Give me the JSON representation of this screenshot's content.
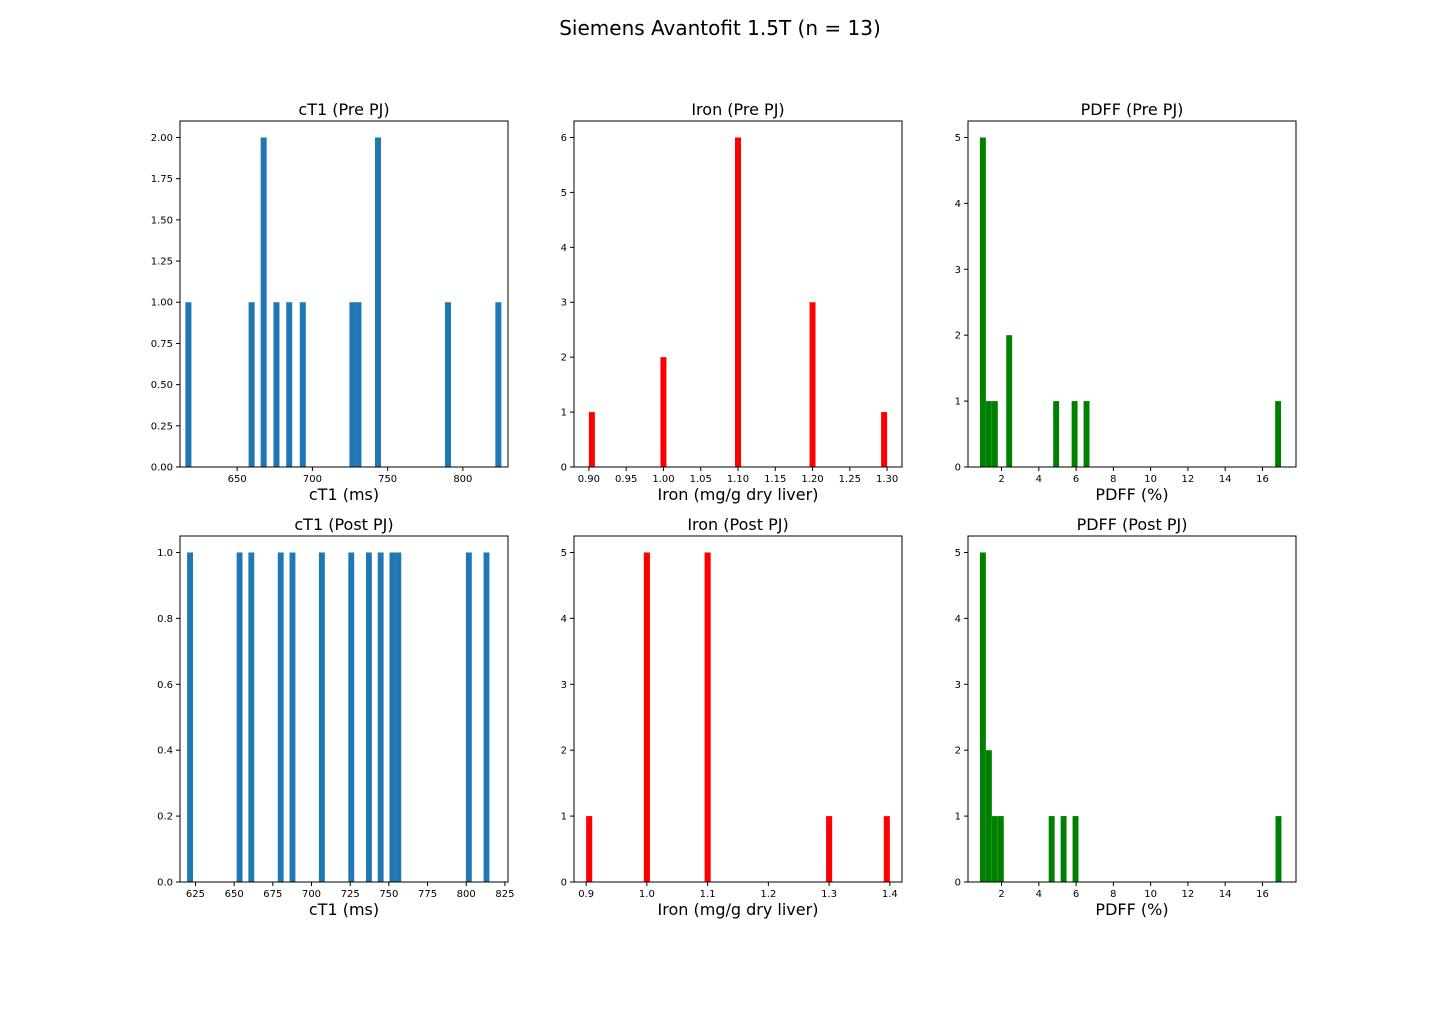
{
  "figure": {
    "title": "Siemens Avantofit 1.5T (n = 13)"
  },
  "chart_data": [
    {
      "type": "bar",
      "title": "cT1 (Pre PJ)",
      "xlabel": "cT1 (ms)",
      "ylabel": "",
      "xlim": [
        612,
        830
      ],
      "ylim": [
        0,
        2.1
      ],
      "bar_width": 4.0,
      "color": "#1f77b4",
      "xticks": [
        650,
        700,
        750,
        800
      ],
      "xtick_labels": [
        "650",
        "700",
        "750",
        "800"
      ],
      "yticks": [
        0,
        0.25,
        0.5,
        0.75,
        1,
        1.25,
        1.5,
        1.75,
        2
      ],
      "ytick_labels": [
        "0.00",
        "0.25",
        "0.50",
        "0.75",
        "1.00",
        "1.25",
        "1.50",
        "1.75",
        "2.00"
      ],
      "bars": [
        {
          "x": 617.6,
          "count": 1
        },
        {
          "x": 659.6,
          "count": 1
        },
        {
          "x": 667.6,
          "count": 2
        },
        {
          "x": 676.1,
          "count": 1
        },
        {
          "x": 684.6,
          "count": 1
        },
        {
          "x": 693.6,
          "count": 1
        },
        {
          "x": 726.6,
          "count": 1
        },
        {
          "x": 730.6,
          "count": 1
        },
        {
          "x": 743.6,
          "count": 2
        },
        {
          "x": 790.1,
          "count": 1
        },
        {
          "x": 823.6,
          "count": 1
        }
      ]
    },
    {
      "type": "bar",
      "title": "Iron (Pre PJ)",
      "xlabel": "Iron (mg/g dry liver)",
      "ylabel": "",
      "xlim": [
        0.88,
        1.32
      ],
      "ylim": [
        0,
        6.3
      ],
      "bar_width": 0.008,
      "color": "#ff0000",
      "xticks": [
        0.9,
        0.95,
        1.0,
        1.05,
        1.1,
        1.15,
        1.2,
        1.25,
        1.3
      ],
      "xtick_labels": [
        "0.90",
        "0.95",
        "1.00",
        "1.05",
        "1.10",
        "1.15",
        "1.20",
        "1.25",
        "1.30"
      ],
      "yticks": [
        0,
        1,
        2,
        3,
        4,
        5,
        6
      ],
      "ytick_labels": [
        "0",
        "1",
        "2",
        "3",
        "4",
        "5",
        "6"
      ],
      "bars": [
        {
          "x": 0.904,
          "count": 1
        },
        {
          "x": 1.0,
          "count": 2
        },
        {
          "x": 1.1,
          "count": 6
        },
        {
          "x": 1.2,
          "count": 3
        },
        {
          "x": 1.296,
          "count": 1
        }
      ]
    },
    {
      "type": "bar",
      "title": "PDFF (Pre PJ)",
      "xlabel": "PDFF (%)",
      "ylabel": "",
      "xlim": [
        0.2,
        17.8
      ],
      "ylim": [
        0,
        5.25
      ],
      "bar_width": 0.318,
      "color": "#008000",
      "xticks": [
        2,
        4,
        6,
        8,
        10,
        12,
        14,
        16
      ],
      "xtick_labels": [
        "2",
        "4",
        "6",
        "8",
        "10",
        "12",
        "14",
        "16"
      ],
      "yticks": [
        0,
        1,
        2,
        3,
        4,
        5
      ],
      "ytick_labels": [
        "0",
        "1",
        "2",
        "3",
        "4",
        "5"
      ],
      "bars": [
        {
          "x": 1.0,
          "count": 5
        },
        {
          "x": 1.32,
          "count": 1
        },
        {
          "x": 1.64,
          "count": 1
        },
        {
          "x": 2.41,
          "count": 2
        },
        {
          "x": 4.93,
          "count": 1
        },
        {
          "x": 5.92,
          "count": 1
        },
        {
          "x": 6.56,
          "count": 1
        },
        {
          "x": 16.84,
          "count": 1
        }
      ]
    },
    {
      "type": "bar",
      "title": "cT1 (Post PJ)",
      "xlabel": "cT1 (ms)",
      "ylabel": "",
      "xlim": [
        615,
        827
      ],
      "ylim": [
        0,
        1.05
      ],
      "bar_width": 3.8,
      "color": "#1f77b4",
      "xticks": [
        625,
        650,
        675,
        700,
        725,
        750,
        775,
        800,
        825
      ],
      "xtick_labels": [
        "625",
        "650",
        "675",
        "700",
        "725",
        "750",
        "775",
        "800",
        "825"
      ],
      "yticks": [
        0,
        0.2,
        0.4,
        0.6,
        0.8,
        1.0
      ],
      "ytick_labels": [
        "0.0",
        "0.2",
        "0.4",
        "0.6",
        "0.8",
        "1.0"
      ],
      "bars": [
        {
          "x": 621.5,
          "count": 1
        },
        {
          "x": 653.5,
          "count": 1
        },
        {
          "x": 661.1,
          "count": 1
        },
        {
          "x": 680.1,
          "count": 1
        },
        {
          "x": 687.7,
          "count": 1
        },
        {
          "x": 706.7,
          "count": 1
        },
        {
          "x": 725.7,
          "count": 1
        },
        {
          "x": 737.1,
          "count": 1
        },
        {
          "x": 744.7,
          "count": 1
        },
        {
          "x": 752.3,
          "count": 1
        },
        {
          "x": 756.1,
          "count": 1
        },
        {
          "x": 801.7,
          "count": 1
        },
        {
          "x": 813.1,
          "count": 1
        }
      ]
    },
    {
      "type": "bar",
      "title": "Iron (Post PJ)",
      "xlabel": "Iron (mg/g dry liver)",
      "ylabel": "",
      "xlim": [
        0.88,
        1.42
      ],
      "ylim": [
        0,
        5.25
      ],
      "bar_width": 0.01,
      "color": "#ff0000",
      "xticks": [
        0.9,
        1.0,
        1.1,
        1.2,
        1.3,
        1.4
      ],
      "xtick_labels": [
        "0.9",
        "1.0",
        "1.1",
        "1.2",
        "1.3",
        "1.4"
      ],
      "yticks": [
        0,
        1,
        2,
        3,
        4,
        5
      ],
      "ytick_labels": [
        "0",
        "1",
        "2",
        "3",
        "4",
        "5"
      ],
      "bars": [
        {
          "x": 0.905,
          "count": 1
        },
        {
          "x": 1.0,
          "count": 5
        },
        {
          "x": 1.1,
          "count": 5
        },
        {
          "x": 1.3,
          "count": 1
        },
        {
          "x": 1.395,
          "count": 1
        }
      ]
    },
    {
      "type": "bar",
      "title": "PDFF (Post PJ)",
      "xlabel": "PDFF (%)",
      "ylabel": "",
      "xlim": [
        0.2,
        17.8
      ],
      "ylim": [
        0,
        5.25
      ],
      "bar_width": 0.318,
      "color": "#008000",
      "xticks": [
        2,
        4,
        6,
        8,
        10,
        12,
        14,
        16
      ],
      "xtick_labels": [
        "2",
        "4",
        "6",
        "8",
        "10",
        "12",
        "14",
        "16"
      ],
      "yticks": [
        0,
        1,
        2,
        3,
        4,
        5
      ],
      "ytick_labels": [
        "0",
        "1",
        "2",
        "3",
        "4",
        "5"
      ],
      "bars": [
        {
          "x": 1.0,
          "count": 5
        },
        {
          "x": 1.32,
          "count": 2
        },
        {
          "x": 1.64,
          "count": 1
        },
        {
          "x": 1.96,
          "count": 1
        },
        {
          "x": 4.69,
          "count": 1
        },
        {
          "x": 5.33,
          "count": 1
        },
        {
          "x": 5.97,
          "count": 1
        },
        {
          "x": 16.86,
          "count": 1
        }
      ]
    }
  ]
}
